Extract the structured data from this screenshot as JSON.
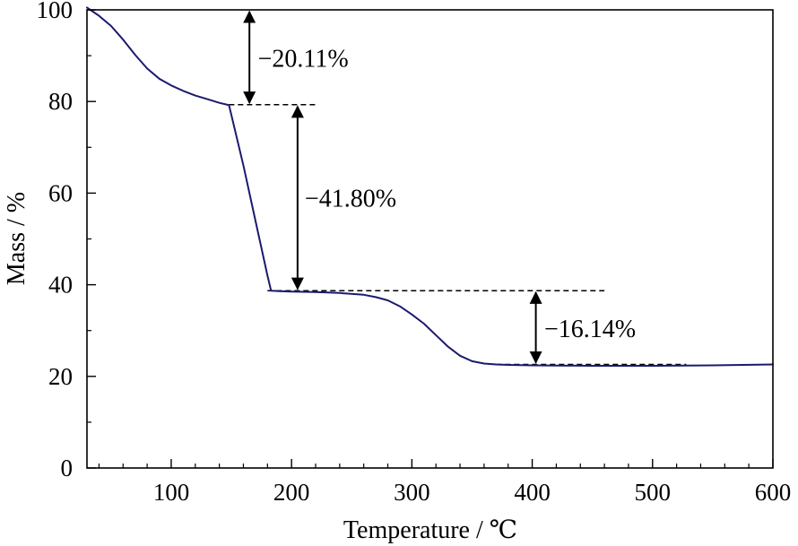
{
  "chart_data": {
    "type": "line",
    "xlabel": "Temperature / ℃",
    "ylabel": "Mass / %",
    "xlim": [
      30,
      600
    ],
    "ylim": [
      0,
      100
    ],
    "x_ticks": [
      100,
      200,
      300,
      400,
      500,
      600
    ],
    "y_ticks": [
      0,
      20,
      40,
      60,
      80,
      100
    ],
    "x_minor_step": 20,
    "y_minor_step": 10,
    "grid": false,
    "line_color": "#1a1a6e",
    "series": [
      {
        "x": [
          30,
          35,
          40,
          50,
          60,
          70,
          80,
          90,
          100,
          110,
          120,
          130,
          140,
          148,
          150,
          160,
          170,
          180,
          183,
          190,
          200,
          220,
          240,
          260,
          270,
          280,
          290,
          300,
          310,
          320,
          330,
          340,
          350,
          360,
          370,
          380,
          400,
          450,
          500,
          550,
          600
        ],
        "y": [
          100.5,
          99.6,
          98.7,
          96.5,
          93.5,
          90.2,
          87.2,
          85.0,
          83.5,
          82.3,
          81.3,
          80.5,
          79.7,
          79.2,
          77.0,
          66.0,
          54.0,
          42.0,
          38.7,
          38.6,
          38.5,
          38.4,
          38.2,
          37.8,
          37.3,
          36.6,
          35.3,
          33.5,
          31.5,
          29.0,
          26.5,
          24.5,
          23.3,
          22.8,
          22.6,
          22.5,
          22.4,
          22.3,
          22.3,
          22.4,
          22.6
        ]
      }
    ],
    "annotations": [
      {
        "text": "−20.11%",
        "x0": 148,
        "x1": 222,
        "arrow_x": 165,
        "y_top": 100,
        "y_bottom": 79.3,
        "label_x": 172,
        "label_y": 89.5
      },
      {
        "text": "−41.80%",
        "x0": 180,
        "x1": 460,
        "arrow_x": 205,
        "y_top": 79.3,
        "y_bottom": 38.7,
        "label_x": 211,
        "label_y": 59
      },
      {
        "text": "−16.14%",
        "x0": 370,
        "x1": 528,
        "arrow_x": 403,
        "y_top": 38.7,
        "y_bottom": 22.6,
        "label_x": 410,
        "label_y": 30.5
      }
    ]
  }
}
